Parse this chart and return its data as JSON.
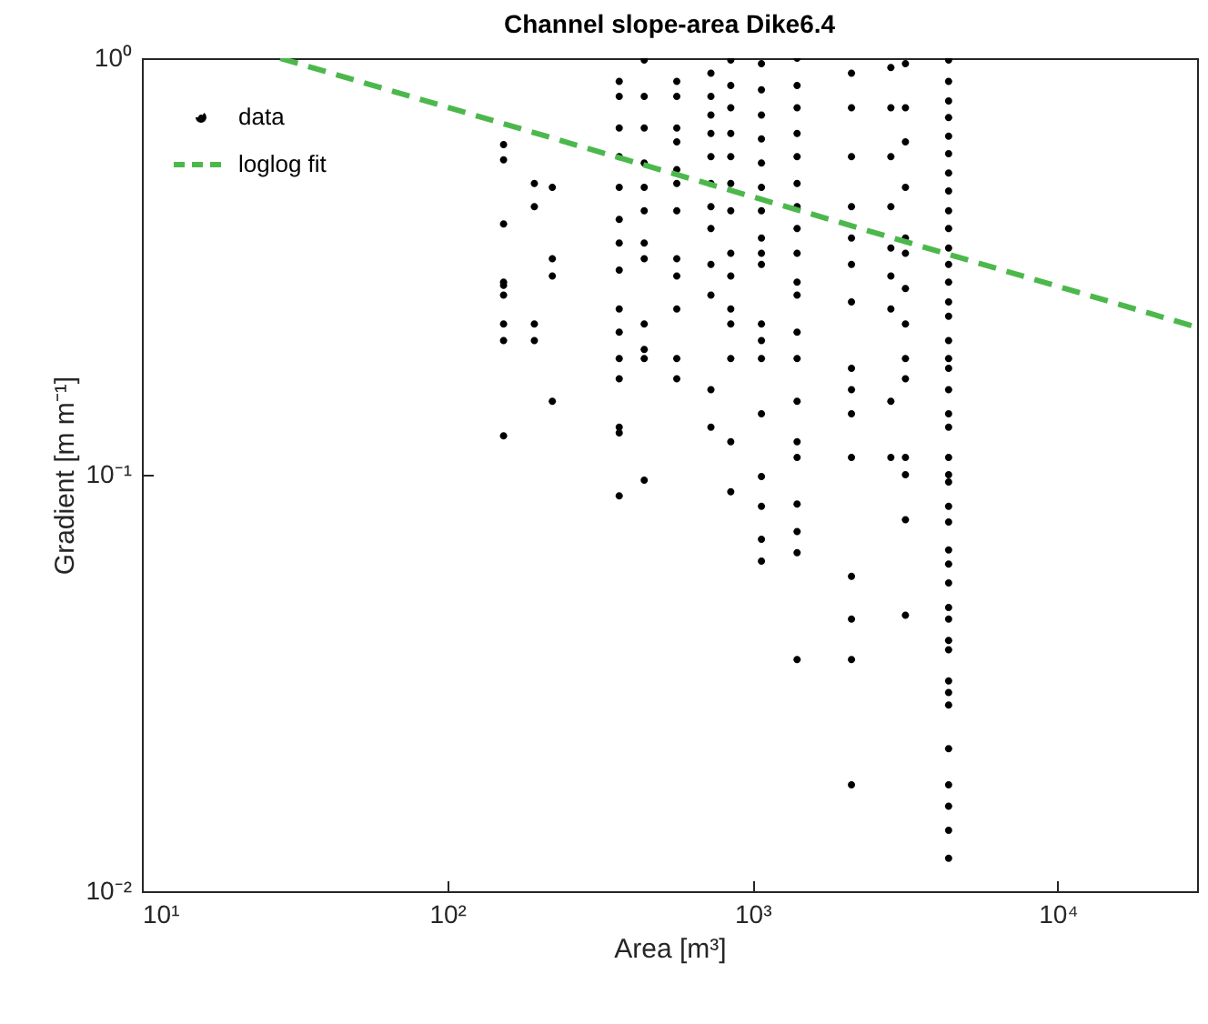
{
  "chart_data": {
    "type": "scatter",
    "title": "Channel slope-area Dike6.4",
    "xlabel": "Area [m³]",
    "ylabel": "Gradient [m m⁻¹]",
    "log": "xy",
    "grid": false,
    "legend": "top left",
    "xlim": [
      10,
      28600
    ],
    "ylim": [
      0.01,
      1
    ],
    "xticks": [
      {
        "value": 10,
        "label": "10¹"
      },
      {
        "value": 100,
        "label": "10²"
      },
      {
        "value": 1000,
        "label": "10³"
      },
      {
        "value": 10000,
        "label": "10⁴"
      }
    ],
    "yticks": [
      {
        "value": 0.01,
        "label": "10⁻²"
      },
      {
        "value": 0.1,
        "label": "10⁻¹"
      },
      {
        "value": 1,
        "label": "10⁰"
      }
    ],
    "series": [
      {
        "name": "data",
        "color": "#000000",
        "marker": "circle",
        "x": [
          153,
          153,
          153,
          153,
          153,
          153,
          153,
          153,
          153,
          193,
          193,
          193,
          193,
          221,
          221,
          221,
          221,
          366,
          366,
          366,
          366,
          366,
          366,
          366,
          366,
          366,
          366,
          366,
          366,
          366,
          366,
          366,
          442,
          442,
          442,
          442,
          442,
          442,
          442,
          442,
          442,
          442,
          442,
          442,
          565,
          565,
          565,
          565,
          565,
          565,
          565,
          565,
          565,
          565,
          565,
          565,
          731,
          731,
          731,
          731,
          731,
          731,
          731,
          731,
          731,
          731,
          731,
          731,
          849,
          849,
          849,
          849,
          849,
          849,
          849,
          849,
          849,
          849,
          849,
          849,
          849,
          849,
          1070,
          1070,
          1070,
          1070,
          1070,
          1070,
          1070,
          1070,
          1070,
          1070,
          1070,
          1070,
          1070,
          1070,
          1070,
          1070,
          1070,
          1070,
          1400,
          1400,
          1400,
          1400,
          1400,
          1400,
          1400,
          1400,
          1400,
          1400,
          1400,
          1400,
          1400,
          1400,
          1400,
          1400,
          1400,
          1400,
          1400,
          1400,
          2110,
          2110,
          2110,
          2110,
          2110,
          2110,
          2110,
          2110,
          2110,
          2110,
          2110,
          2110,
          2110,
          2110,
          2110,
          2840,
          2840,
          2840,
          2840,
          2840,
          2840,
          2840,
          2840,
          2840,
          3170,
          3170,
          3170,
          3170,
          3170,
          3170,
          3170,
          3170,
          3170,
          3170,
          3170,
          3170,
          3170,
          3170,
          4390,
          4390,
          4390,
          4390,
          4390,
          4390,
          4390,
          4390,
          4390,
          4390,
          4390,
          4390,
          4390,
          4390,
          4390,
          4390,
          4390,
          4390,
          4390,
          4390,
          4390,
          4390,
          4390,
          4390,
          4390,
          4390,
          4390,
          4390,
          4390,
          4390,
          4390,
          4390,
          4390,
          4390,
          4390,
          4390,
          4390,
          4390,
          4390,
          4390,
          4390
        ],
        "values": [
          0.62,
          0.57,
          0.4,
          0.29,
          0.285,
          0.27,
          0.23,
          0.21,
          0.124,
          0.5,
          0.44,
          0.23,
          0.21,
          0.49,
          0.33,
          0.3,
          0.15,
          0.88,
          0.81,
          0.68,
          0.58,
          0.49,
          0.41,
          0.36,
          0.31,
          0.25,
          0.22,
          0.19,
          0.17,
          0.13,
          0.126,
          0.089,
          0.99,
          0.81,
          0.68,
          0.56,
          0.49,
          0.43,
          0.36,
          0.33,
          0.23,
          0.2,
          0.19,
          0.097,
          0.88,
          0.81,
          0.68,
          0.63,
          0.54,
          0.5,
          0.43,
          0.33,
          0.3,
          0.25,
          0.19,
          0.17,
          0.92,
          0.81,
          0.73,
          0.66,
          0.58,
          0.5,
          0.44,
          0.39,
          0.32,
          0.27,
          0.16,
          0.13,
          0.99,
          0.86,
          0.76,
          0.66,
          0.58,
          0.5,
          0.43,
          0.34,
          0.3,
          0.25,
          0.23,
          0.19,
          0.12,
          0.091,
          0.97,
          0.84,
          0.73,
          0.64,
          0.56,
          0.49,
          0.43,
          0.37,
          0.34,
          0.32,
          0.23,
          0.21,
          0.19,
          0.14,
          0.099,
          0.084,
          0.07,
          0.062,
          1.0,
          0.86,
          0.76,
          0.66,
          0.58,
          0.5,
          0.44,
          0.39,
          0.34,
          0.29,
          0.27,
          0.22,
          0.19,
          0.15,
          0.12,
          0.11,
          0.085,
          0.073,
          0.065,
          0.036,
          0.92,
          0.76,
          0.58,
          0.44,
          0.37,
          0.32,
          0.26,
          0.18,
          0.16,
          0.14,
          0.11,
          0.057,
          0.045,
          0.036,
          0.018,
          0.95,
          0.76,
          0.58,
          0.44,
          0.35,
          0.3,
          0.25,
          0.15,
          0.11,
          0.97,
          0.76,
          0.63,
          0.49,
          0.37,
          0.34,
          0.28,
          0.23,
          0.19,
          0.17,
          0.11,
          0.1,
          0.078,
          0.046,
          0.99,
          0.88,
          0.79,
          0.72,
          0.65,
          0.59,
          0.53,
          0.48,
          0.43,
          0.39,
          0.35,
          0.32,
          0.29,
          0.26,
          0.24,
          0.21,
          0.19,
          0.18,
          0.16,
          0.14,
          0.13,
          0.11,
          0.1,
          0.096,
          0.084,
          0.077,
          0.066,
          0.061,
          0.055,
          0.048,
          0.045,
          0.04,
          0.038,
          0.032,
          0.03,
          0.028,
          0.022,
          0.018,
          0.016,
          0.014,
          0.012
        ]
      },
      {
        "name": "loglog fit",
        "type": "line",
        "color": "#4cb84c",
        "line_style": "dashed",
        "marker": "none",
        "x": [
          28.4,
          28600
        ],
        "values": [
          1,
          0.226
        ]
      }
    ]
  }
}
